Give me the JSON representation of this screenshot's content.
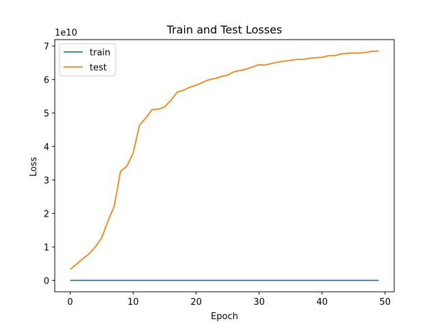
{
  "chart_data": {
    "type": "line",
    "title": "Train and Test Losses",
    "xlabel": "Epoch",
    "ylabel": "Loss",
    "y_offset_text": "1e10",
    "y_scale_factor": 10000000000,
    "xlim": [
      -2.45,
      51.45
    ],
    "ylim": [
      -0.34,
      7.19
    ],
    "xticks": [
      0,
      10,
      20,
      30,
      40,
      50
    ],
    "yticks": [
      0,
      1,
      2,
      3,
      4,
      5,
      6,
      7
    ],
    "grid": false,
    "legend_position": "upper left",
    "x": [
      0,
      1,
      2,
      3,
      4,
      5,
      6,
      7,
      8,
      9,
      10,
      11,
      12,
      13,
      14,
      15,
      16,
      17,
      18,
      19,
      20,
      21,
      22,
      23,
      24,
      25,
      26,
      27,
      28,
      29,
      30,
      31,
      32,
      33,
      34,
      35,
      36,
      37,
      38,
      39,
      40,
      41,
      42,
      43,
      44,
      45,
      46,
      47,
      48,
      49
    ],
    "series": [
      {
        "name": "train",
        "color": "#1f77b4",
        "values": [
          0,
          0,
          0,
          0,
          0,
          0,
          0,
          0,
          0,
          0,
          0,
          0,
          0,
          0,
          0,
          0,
          0,
          0,
          0,
          0,
          0,
          0,
          0,
          0,
          0,
          0,
          0,
          0,
          0,
          0,
          0,
          0,
          0,
          0,
          0,
          0,
          0,
          0,
          0,
          0,
          0,
          0,
          0,
          0,
          0,
          0,
          0,
          0,
          0,
          0
        ]
      },
      {
        "name": "test",
        "color": "#ff7f0e",
        "values": [
          0.33,
          0.48,
          0.65,
          0.79,
          1.0,
          1.27,
          1.77,
          2.22,
          3.26,
          3.41,
          3.8,
          4.63,
          4.85,
          5.1,
          5.11,
          5.18,
          5.38,
          5.62,
          5.68,
          5.77,
          5.83,
          5.91,
          5.99,
          6.03,
          6.09,
          6.13,
          6.23,
          6.27,
          6.31,
          6.38,
          6.44,
          6.43,
          6.48,
          6.52,
          6.55,
          6.57,
          6.6,
          6.6,
          6.63,
          6.65,
          6.66,
          6.71,
          6.71,
          6.76,
          6.78,
          6.79,
          6.79,
          6.81,
          6.84,
          6.85
        ]
      }
    ]
  }
}
